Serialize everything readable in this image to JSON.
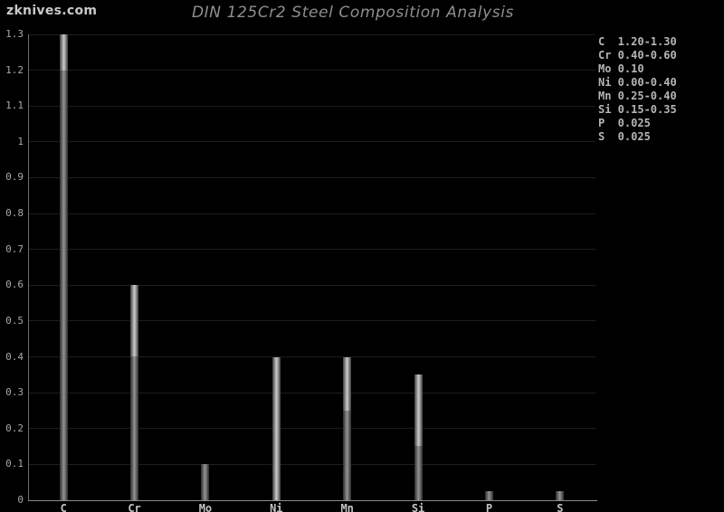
{
  "header": {
    "watermark": "zknives.com",
    "title": "DIN 125Cr2 Steel Composition Analysis"
  },
  "chart_data": {
    "type": "bar",
    "title": "DIN 125Cr2 Steel Composition Analysis",
    "categories": [
      "C",
      "Cr",
      "Mo",
      "Ni",
      "Mn",
      "Si",
      "P",
      "S"
    ],
    "series": [
      {
        "name": "min",
        "values": [
          1.2,
          0.4,
          0.1,
          0.0,
          0.25,
          0.15,
          0.025,
          0.025
        ]
      },
      {
        "name": "max",
        "values": [
          1.3,
          0.6,
          0.1,
          0.4,
          0.4,
          0.35,
          0.025,
          0.025
        ]
      }
    ],
    "xlabel": "",
    "ylabel": "",
    "ylim": [
      0,
      1.3
    ],
    "ytick_step": 0.1,
    "ytick_labels": [
      "0",
      "0.1",
      "0.2",
      "0.3",
      "0.4",
      "0.5",
      "0.6",
      "0.7",
      "0.8",
      "0.9",
      "1",
      "1.1",
      "1.2",
      "1.3"
    ],
    "grid": true,
    "legend_position": "top-right",
    "legend_entries": [
      {
        "symbol": "C",
        "value": "1.20-1.30"
      },
      {
        "symbol": "Cr",
        "value": "0.40-0.60"
      },
      {
        "symbol": "Mo",
        "value": "0.10"
      },
      {
        "symbol": "Ni",
        "value": "0.00-0.40"
      },
      {
        "symbol": "Mn",
        "value": "0.25-0.40"
      },
      {
        "symbol": "Si",
        "value": "0.15-0.35"
      },
      {
        "symbol": "P",
        "value": "0.025"
      },
      {
        "symbol": "S",
        "value": "0.025"
      }
    ]
  },
  "colors": {
    "background": "#000000",
    "gridline": "#1e1e1e",
    "axis_y": "#6f6f6f",
    "axis_x": "#8c8c8c",
    "bar_range_center": "#cdcdcd",
    "bar_range_edge": "#3d3d3d",
    "bar_base_center": "#949494",
    "bar_base_edge": "#2c2c2c",
    "title_text": "#8f8f8f",
    "tick_text": "#a8a8a8",
    "category_text": "#c4c4c4",
    "legend_text": "#b5b5b5",
    "watermark_text": "#c9c9c9"
  }
}
